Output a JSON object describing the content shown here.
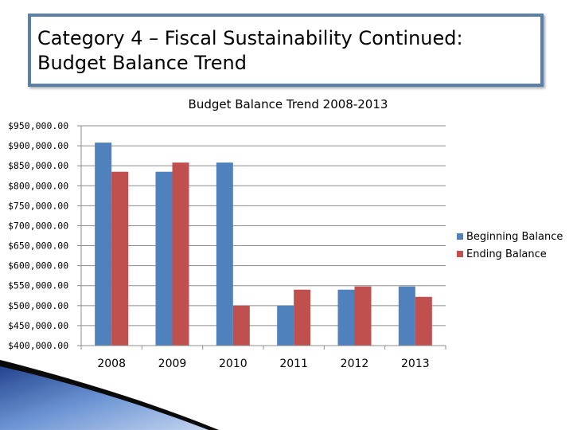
{
  "slide": {
    "title": "Category 4 – Fiscal Sustainability Continued:\nBudget Balance Trend"
  },
  "colors": {
    "beginning": "#4f81bd",
    "ending": "#c0504d",
    "border": "#5a7fa8"
  },
  "chart_data": {
    "type": "bar",
    "title": "Budget Balance Trend 2008-2013",
    "categories": [
      "2008",
      "2009",
      "2010",
      "2011",
      "2012",
      "2013"
    ],
    "series": [
      {
        "name": "Beginning Balance",
        "values": [
          908000,
          835000,
          858000,
          500000,
          540000,
          548000
        ]
      },
      {
        "name": "Ending Balance",
        "values": [
          835000,
          858000,
          500000,
          540000,
          548000,
          522000
        ]
      }
    ],
    "ylim": [
      400000,
      950000
    ],
    "ytick_step": 50000,
    "ytick_labels": [
      "$950,000.00",
      "$900,000.00",
      "$850,000.00",
      "$800,000.00",
      "$750,000.00",
      "$700,000.00",
      "$650,000.00",
      "$600,000.00",
      "$550,000.00",
      "$500,000.00",
      "$450,000.00",
      "$400,000.00"
    ],
    "xlabel": "",
    "ylabel": "",
    "grid": true,
    "legend_position": "right"
  }
}
